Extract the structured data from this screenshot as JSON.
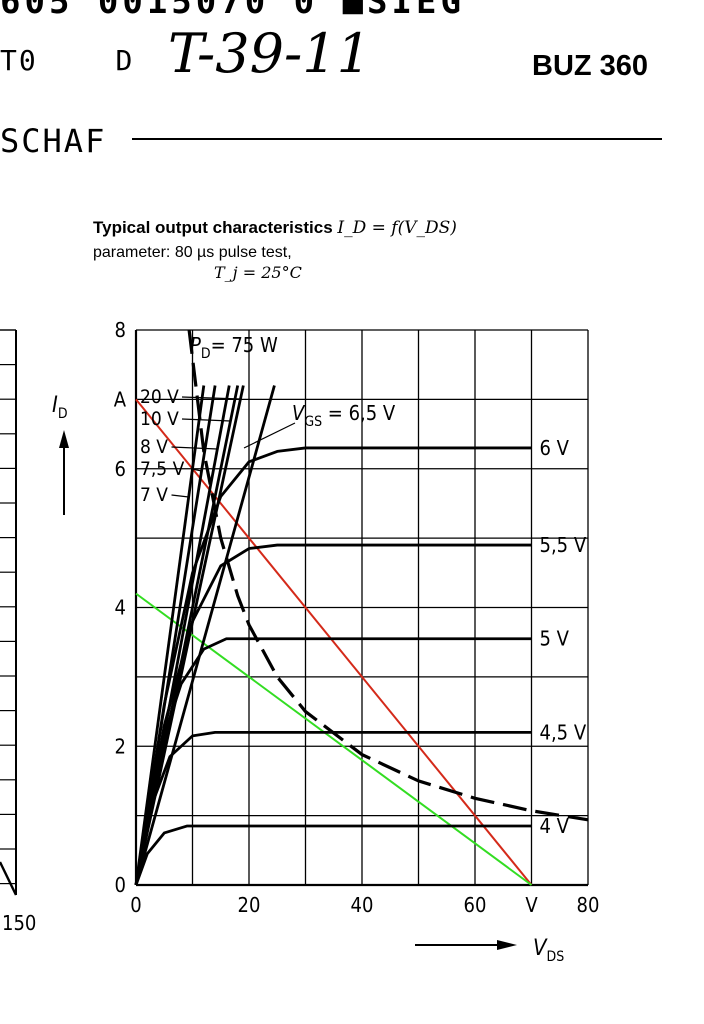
{
  "header": {
    "scan_line": "605 0015070 0 ■SIEG",
    "left_code_1": "T0",
    "left_code_2": "D",
    "handwritten": "T-39-11",
    "part_number": "BUZ 360",
    "section": "SCHAF"
  },
  "left_chart_fragment": {
    "tick_label": "150"
  },
  "chart_title": {
    "line1_text": "Typical output characteristics",
    "line1_formula": "I_D = f(V_DS)",
    "line2": "parameter: 80 µs pulse test,",
    "line3": "T_j = 25°C"
  },
  "chart_data": {
    "type": "line",
    "title": "Typical output characteristics I_D = f(V_DS)",
    "subtitle": "parameter: 80 µs pulse test, T_j = 25°C",
    "xlabel": "V_DS",
    "ylabel": "I_D",
    "xunit": "V",
    "yunit": "A",
    "xlim": [
      0,
      80
    ],
    "ylim": [
      0,
      8
    ],
    "x_ticks": [
      0,
      20,
      40,
      60,
      80
    ],
    "y_ticks": [
      0,
      2,
      4,
      6,
      8
    ],
    "grid": true,
    "annotations": {
      "power_label": "P_D = 75 W",
      "vgs_label": "V_GS = 6,5 V"
    },
    "series": [
      {
        "name": "20 V",
        "label_side": "left",
        "points": [
          [
            0,
            0
          ],
          [
            19,
            7.2
          ]
        ]
      },
      {
        "name": "10 V",
        "label_side": "left",
        "points": [
          [
            0,
            0
          ],
          [
            18,
            7.2
          ]
        ]
      },
      {
        "name": "8 V",
        "label_side": "left",
        "points": [
          [
            0,
            0
          ],
          [
            16.5,
            7.2
          ]
        ]
      },
      {
        "name": "7,5 V",
        "label_side": "left",
        "points": [
          [
            0,
            0
          ],
          [
            14,
            7.2
          ]
        ]
      },
      {
        "name": "7 V",
        "label_side": "left",
        "points": [
          [
            0,
            0
          ],
          [
            12,
            7.2
          ]
        ]
      },
      {
        "name": "6,5 V",
        "label_side": "none",
        "points": [
          [
            0,
            0
          ],
          [
            24.5,
            7.2
          ]
        ]
      },
      {
        "name": "6 V",
        "label_side": "right",
        "points": [
          [
            0,
            0
          ],
          [
            5,
            2.6
          ],
          [
            10,
            4.5
          ],
          [
            15,
            5.6
          ],
          [
            20,
            6.1
          ],
          [
            25,
            6.25
          ],
          [
            30,
            6.3
          ],
          [
            70,
            6.3
          ]
        ]
      },
      {
        "name": "5,5 V",
        "label_side": "right",
        "points": [
          [
            0,
            0
          ],
          [
            5,
            2.3
          ],
          [
            10,
            3.8
          ],
          [
            15,
            4.6
          ],
          [
            20,
            4.85
          ],
          [
            25,
            4.9
          ],
          [
            70,
            4.9
          ]
        ]
      },
      {
        "name": "5 V",
        "label_side": "right",
        "points": [
          [
            0,
            0
          ],
          [
            4,
            1.9
          ],
          [
            8,
            2.9
          ],
          [
            12,
            3.4
          ],
          [
            16,
            3.55
          ],
          [
            20,
            3.55
          ],
          [
            70,
            3.55
          ]
        ]
      },
      {
        "name": "4,5 V",
        "label_side": "right",
        "points": [
          [
            0,
            0
          ],
          [
            3,
            1.2
          ],
          [
            6,
            1.85
          ],
          [
            10,
            2.15
          ],
          [
            14,
            2.2
          ],
          [
            70,
            2.2
          ]
        ]
      },
      {
        "name": "4 V",
        "label_side": "right",
        "points": [
          [
            0,
            0
          ],
          [
            2,
            0.45
          ],
          [
            5,
            0.75
          ],
          [
            9,
            0.85
          ],
          [
            70,
            0.85
          ]
        ]
      }
    ],
    "power_hyperbola": {
      "name": "P_D = 75 W",
      "style": "dashed",
      "points": [
        [
          9.4,
          8.0
        ],
        [
          12,
          6.25
        ],
        [
          15,
          5.0
        ],
        [
          18,
          4.17
        ],
        [
          20,
          3.75
        ],
        [
          25,
          3.0
        ],
        [
          30,
          2.5
        ],
        [
          40,
          1.88
        ],
        [
          50,
          1.5
        ],
        [
          60,
          1.25
        ],
        [
          70,
          1.07
        ],
        [
          80,
          0.94
        ]
      ]
    },
    "load_lines": [
      {
        "color": "#d42a1a",
        "points": [
          [
            0,
            7.0
          ],
          [
            70,
            0
          ]
        ]
      },
      {
        "color": "#33dd22",
        "points": [
          [
            0,
            4.2
          ],
          [
            70,
            0
          ]
        ]
      }
    ]
  }
}
